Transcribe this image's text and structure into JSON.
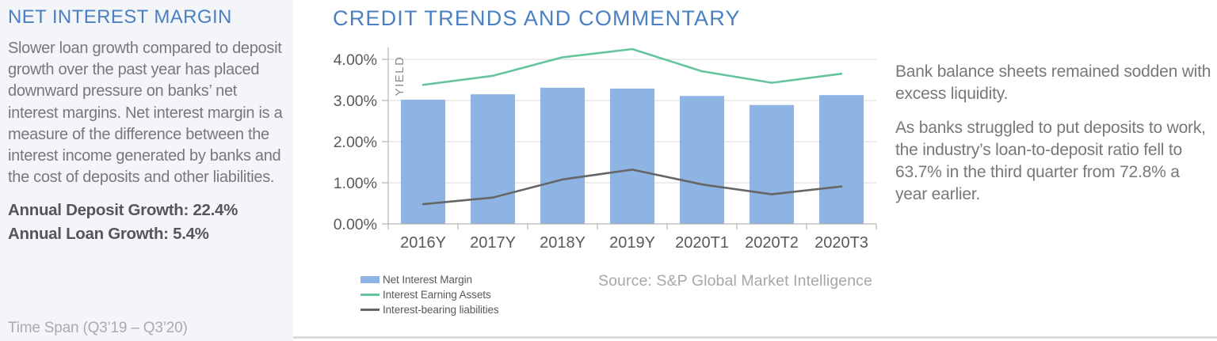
{
  "left_panel": {
    "title": "NET INTEREST MARGIN",
    "body": "Slower loan growth compared to deposit growth over the past year has placed downward pressure on banks’ net interest margins. Net interest margin is a measure of the difference between the interest income generated by banks and the cost of deposits and other liabilities.",
    "stats": [
      "Annual Deposit Growth: 22.4%",
      "Annual Loan Growth: 5.4%"
    ],
    "timespan": "Time Span (Q3’19 – Q3’20)"
  },
  "main": {
    "title": "CREDIT TRENDS AND COMMENTARY",
    "source": "Source: S&P Global Market Intelligence",
    "commentary": [
      "Bank balance sheets remained sodden with excess liquidity.",
      "As banks struggled to put deposits to work, the industry’s loan-to-deposit ratio fell to 63.7% in the third quarter from 72.8% a year earlier."
    ]
  },
  "colors": {
    "accent_blue": "#4a80c2",
    "bar_blue": "#8EB4E3",
    "line_green": "#66C49C",
    "line_gray": "#666666",
    "gridline": "#d9d9d9",
    "axis": "#a6a6a6",
    "axis_text": "#595959",
    "axis_title": "#8a8a8a"
  },
  "chart_data": {
    "type": "bar",
    "subtype": "bar-line-combo",
    "categories": [
      "2016Y",
      "2017Y",
      "2018Y",
      "2019Y",
      "2020T1",
      "2020T2",
      "2020T3"
    ],
    "series": [
      {
        "name": "Net Interest Margin",
        "type": "bar",
        "color": "#8EB4E3",
        "values": [
          3.02,
          3.15,
          3.31,
          3.29,
          3.11,
          2.89,
          3.13
        ]
      },
      {
        "name": "Interest Earning Assets",
        "type": "line",
        "color": "#66C49C",
        "values": [
          3.38,
          3.6,
          4.05,
          4.25,
          3.71,
          3.43,
          3.65
        ]
      },
      {
        "name": "Interest-bearing liabilities",
        "type": "line",
        "color": "#666666",
        "values": [
          0.48,
          0.64,
          1.08,
          1.32,
          0.96,
          0.72,
          0.91
        ]
      }
    ],
    "title": "",
    "xlabel": "",
    "ylabel": "YIELD",
    "ylim": [
      0,
      4.5
    ],
    "ytick_values": [
      0,
      1,
      2,
      3,
      4
    ],
    "ytick_labels": [
      "0.00%",
      "1.00%",
      "2.00%",
      "3.00%",
      "4.00%"
    ],
    "grid": true,
    "legend_position": "bottom-left"
  }
}
